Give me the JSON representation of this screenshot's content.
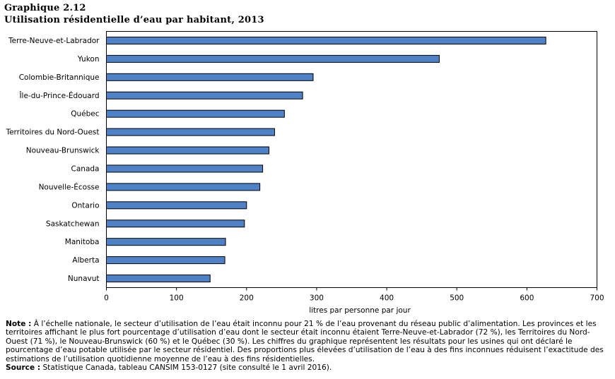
{
  "header": {
    "figure_number": "Graphique  2.12",
    "title": "Utilisation  résidentielle  d’eau par habitant, 2013"
  },
  "chart_data": {
    "type": "bar",
    "orientation": "horizontal",
    "title": "Utilisation  résidentielle  d’eau par habitant, 2013",
    "xlabel": "litres par personne par jour",
    "ylabel": "",
    "xlim": [
      0,
      700
    ],
    "xticks": [
      0,
      100,
      200,
      300,
      400,
      500,
      600,
      700
    ],
    "grid": false,
    "bar_color": "#4f81c7",
    "categories": [
      "Terre-Neuve-et-Labrador",
      "Yukon",
      "Colombie-Britannique",
      "Île-du-Prince-Édouard",
      "Québec",
      "Territoires du Nord-Ouest",
      "Nouveau-Brunswick",
      "Canada",
      "Nouvelle-Écosse",
      "Ontario",
      "Saskatchewan",
      "Manitoba",
      "Alberta",
      "Nunavut"
    ],
    "values": [
      627,
      475,
      295,
      280,
      254,
      240,
      232,
      223,
      219,
      200,
      197,
      170,
      169,
      148
    ]
  },
  "footer": {
    "note_label": "Note :",
    "note_text": "À l’échelle nationale, le secteur d’utilisation de l’eau était inconnu pour 21 % de l’eau provenant du réseau public d’alimentation. Les provinces et les territoires affichant le plus fort pourcentage d’utilisation d’eau dont le secteur était inconnu étaient Terre-Neuve-et-Labrador (72 %), les Territoires du Nord-Ouest (71 %), le Nouveau-Brunswick (60 %) et le Québec (30 %). Les chiffres du graphique représentent les résultats pour les usines qui ont déclaré le pourcentage d’eau potable utilisée par le secteur résidentiel. Des proportions plus élevées d’utilisation de l’eau à des fins inconnues réduisent l’exactitude des estimations de l’utilisation quotidienne moyenne de l’eau à des fins résidentielles.",
    "source_label": "Source :",
    "source_text": "Statistique Canada, tableau CANSIM 153-0127 (site consulté le 1 avril 2016)."
  }
}
